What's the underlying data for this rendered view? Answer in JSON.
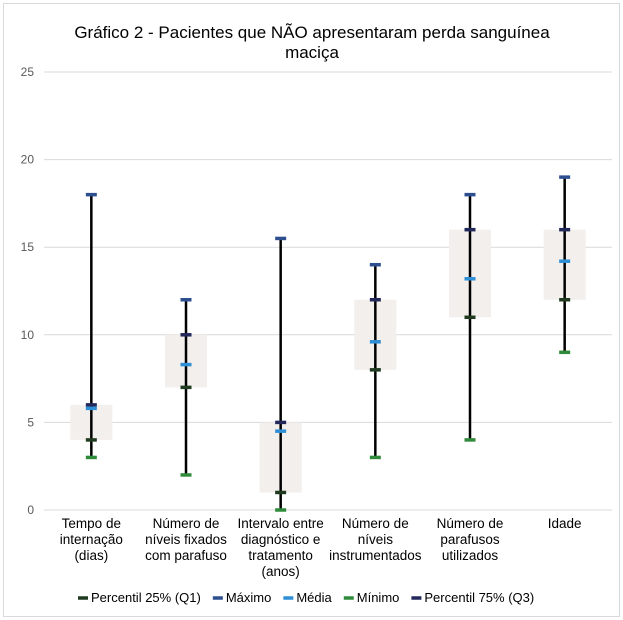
{
  "chart_data": {
    "type": "box",
    "title_lines": [
      "Gráfico 2 - Pacientes que NÃO apresentaram perda sanguínea",
      "maciça"
    ],
    "ylim": [
      0,
      25
    ],
    "yticks": [
      0,
      5,
      10,
      15,
      20,
      25
    ],
    "grid": true,
    "legend_position": "bottom",
    "categories": [
      [
        "Tempo de",
        "internação",
        "(dias)"
      ],
      [
        "Número de",
        "níveis fixados",
        "com parafuso"
      ],
      [
        "Intervalo entre",
        "diagnóstico e",
        "tratamento",
        "(anos)"
      ],
      [
        "Número de",
        "níveis",
        "instrumentados"
      ],
      [
        "Número de",
        "parafusos",
        "utilizados"
      ],
      [
        "Idade"
      ]
    ],
    "series": [
      {
        "name": "Percentil 25% (Q1)",
        "key": "q1",
        "values": [
          4,
          7,
          1,
          8,
          11,
          12
        ]
      },
      {
        "name": "Máximo",
        "key": "max",
        "values": [
          18,
          12,
          15.5,
          14,
          18,
          19
        ]
      },
      {
        "name": "Média",
        "key": "mean",
        "values": [
          5.8,
          8.3,
          4.5,
          9.6,
          13.2,
          14.2
        ]
      },
      {
        "name": "Mínimo",
        "key": "min",
        "values": [
          3,
          2,
          0,
          3,
          4,
          9
        ]
      },
      {
        "name": "Percentil 75% (Q3)",
        "key": "q3",
        "values": [
          6,
          10,
          5,
          12,
          16,
          16
        ]
      }
    ],
    "colors": {
      "q1": "#1f3a1f",
      "max": "#2e4f8f",
      "mean": "#2e8fd6",
      "min": "#2f8a3a",
      "q3": "#22285a",
      "whisker": "#000000",
      "box": "#f2efed",
      "grid": "#d9d9d9"
    }
  }
}
